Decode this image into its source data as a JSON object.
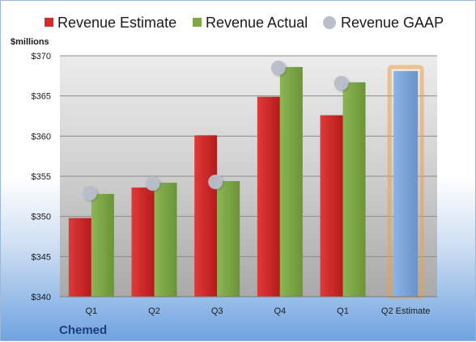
{
  "chart_data": {
    "type": "bar",
    "company": "Chemed",
    "ylabel": "$millions",
    "ylim": [
      340,
      370
    ],
    "yticks": [
      "$340",
      "$345",
      "$350",
      "$355",
      "$360",
      "$365",
      "$370"
    ],
    "yticks_values": [
      340,
      345,
      350,
      355,
      360,
      365,
      370
    ],
    "grid": true,
    "legend_position": "top",
    "categories": [
      "Q1",
      "Q2",
      "Q3",
      "Q4",
      "Q1",
      "Q2 Estimate"
    ],
    "series": [
      {
        "name": "Revenue Estimate",
        "type": "bar",
        "color": "#d42a2a",
        "values": [
          349.8,
          353.6,
          360.1,
          364.9,
          362.6,
          null
        ]
      },
      {
        "name": "Revenue Actual",
        "type": "bar",
        "color": "#7ea845",
        "values": [
          352.8,
          354.2,
          354.4,
          368.6,
          366.7,
          368.1
        ]
      },
      {
        "name": "Revenue GAAP",
        "type": "marker",
        "color": "#b9bfca",
        "values": [
          352.9,
          354.1,
          354.3,
          368.5,
          366.6,
          null
        ]
      }
    ],
    "estimate_bar_color": "#7aa4d8",
    "estimate_highlight_color": "#f0a040"
  }
}
